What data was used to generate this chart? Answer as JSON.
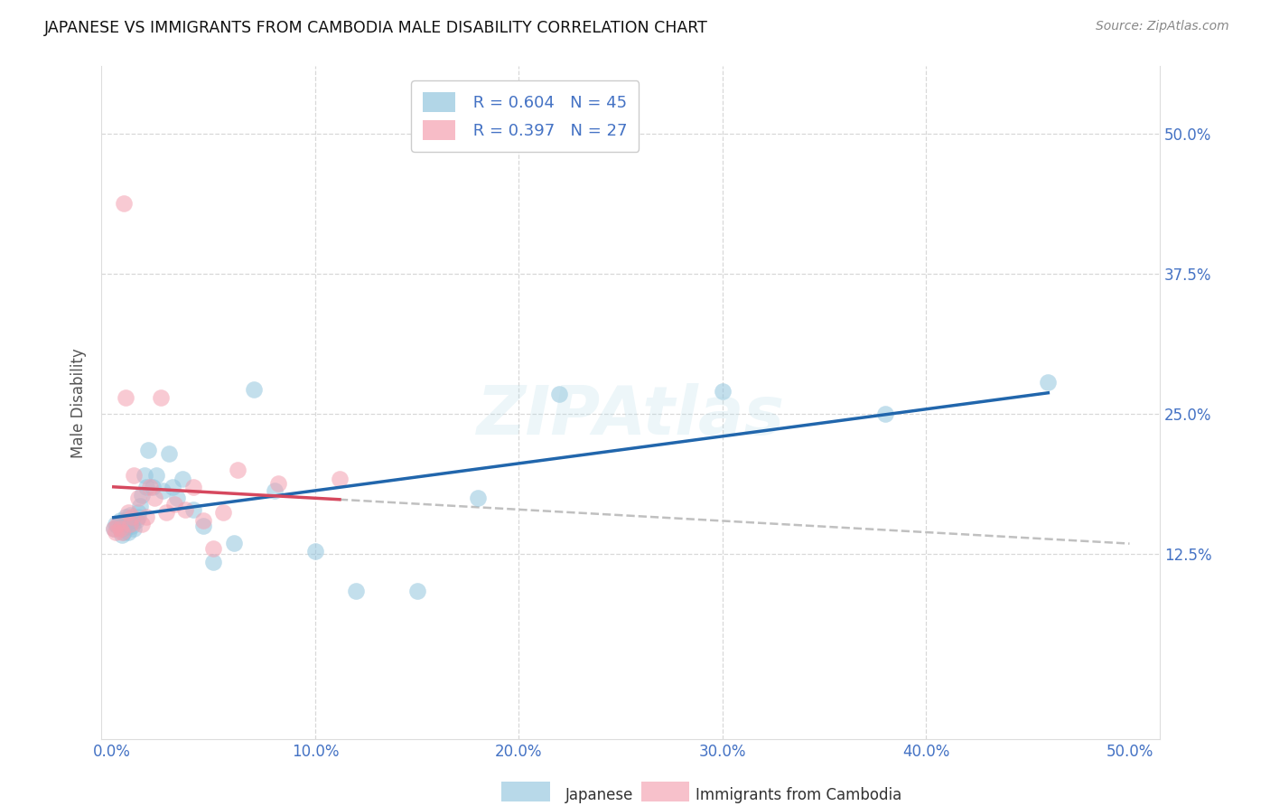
{
  "title": "JAPANESE VS IMMIGRANTS FROM CAMBODIA MALE DISABILITY CORRELATION CHART",
  "source": "Source: ZipAtlas.com",
  "ylabel": "Male Disability",
  "ytick_labels": [
    "12.5%",
    "25.0%",
    "37.5%",
    "50.0%"
  ],
  "ytick_values": [
    0.125,
    0.25,
    0.375,
    0.5
  ],
  "xlim": [
    -0.005,
    0.515
  ],
  "ylim": [
    -0.04,
    0.56
  ],
  "legend_blue_R": "0.604",
  "legend_blue_N": "45",
  "legend_pink_R": "0.397",
  "legend_pink_N": "27",
  "blue_color": "#92c5de",
  "pink_color": "#f4a0b0",
  "trendline_blue_color": "#2166ac",
  "trendline_pink_color": "#d6485e",
  "trendline_gray_color": "#c0c0c0",
  "japanese_x": [
    0.001,
    0.002,
    0.003,
    0.004,
    0.005,
    0.005,
    0.006,
    0.006,
    0.007,
    0.007,
    0.008,
    0.008,
    0.009,
    0.01,
    0.01,
    0.011,
    0.012,
    0.013,
    0.013,
    0.014,
    0.015,
    0.016,
    0.017,
    0.018,
    0.02,
    0.022,
    0.025,
    0.028,
    0.03,
    0.032,
    0.035,
    0.04,
    0.045,
    0.05,
    0.06,
    0.07,
    0.08,
    0.1,
    0.12,
    0.15,
    0.18,
    0.22,
    0.3,
    0.38,
    0.46
  ],
  "japanese_y": [
    0.148,
    0.152,
    0.15,
    0.155,
    0.148,
    0.142,
    0.155,
    0.145,
    0.158,
    0.152,
    0.15,
    0.145,
    0.16,
    0.155,
    0.15,
    0.148,
    0.155,
    0.158,
    0.162,
    0.168,
    0.178,
    0.195,
    0.185,
    0.218,
    0.185,
    0.195,
    0.182,
    0.215,
    0.185,
    0.175,
    0.192,
    0.165,
    0.15,
    0.118,
    0.135,
    0.272,
    0.182,
    0.128,
    0.092,
    0.092,
    0.175,
    0.268,
    0.27,
    0.25,
    0.278
  ],
  "cambodia_x": [
    0.001,
    0.002,
    0.003,
    0.004,
    0.005,
    0.006,
    0.007,
    0.008,
    0.009,
    0.01,
    0.011,
    0.013,
    0.015,
    0.017,
    0.019,
    0.021,
    0.024,
    0.027,
    0.031,
    0.036,
    0.04,
    0.045,
    0.05,
    0.055,
    0.062,
    0.082,
    0.112
  ],
  "cambodia_y": [
    0.148,
    0.145,
    0.152,
    0.148,
    0.145,
    0.438,
    0.265,
    0.162,
    0.152,
    0.158,
    0.195,
    0.175,
    0.152,
    0.158,
    0.185,
    0.175,
    0.265,
    0.162,
    0.17,
    0.165,
    0.185,
    0.155,
    0.13,
    0.162,
    0.2,
    0.188,
    0.192
  ]
}
